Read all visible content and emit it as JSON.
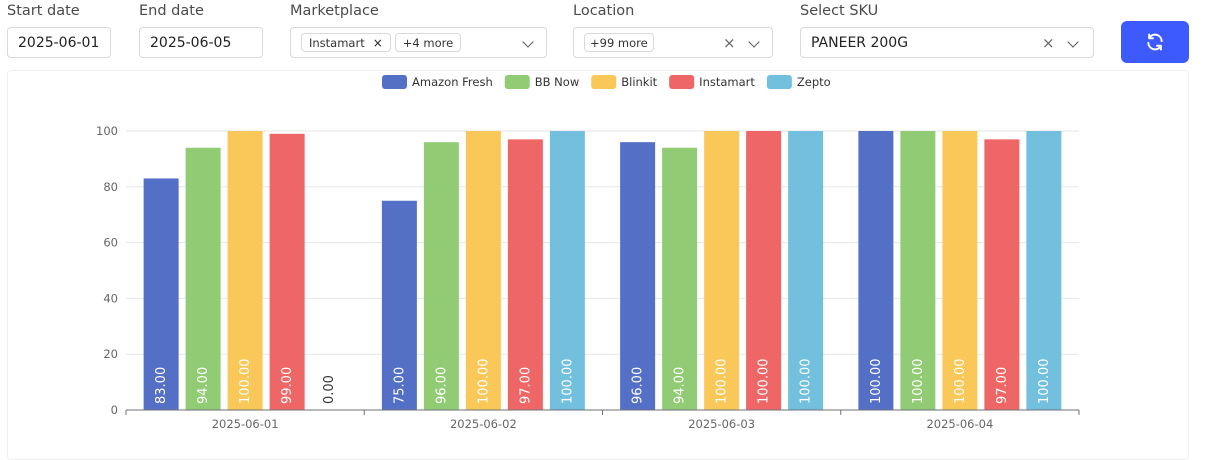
{
  "filters": {
    "start_date": {
      "label": "Start date",
      "value": "2025-06-01"
    },
    "end_date": {
      "label": "End date",
      "value": "2025-06-05"
    },
    "marketplace": {
      "label": "Marketplace",
      "tag": "Instamart",
      "tag_remove": "×",
      "more": "+4 more"
    },
    "location": {
      "label": "Location",
      "more": "+99 more",
      "clear": "×"
    },
    "sku": {
      "label": "Select SKU",
      "value": "PANEER 200G",
      "clear": "×"
    },
    "refresh_icon": "refresh-icon",
    "accent_color": "#3d5afe"
  },
  "chart_data": {
    "type": "bar",
    "categories": [
      "2025-06-01",
      "2025-06-02",
      "2025-06-03",
      "2025-06-04"
    ],
    "series": [
      {
        "name": "Amazon Fresh",
        "color": "#5470c6",
        "values": [
          83,
          75,
          96,
          100
        ],
        "labels": [
          "83.00",
          "75.00",
          "96.00",
          "100.00"
        ]
      },
      {
        "name": "BB Now",
        "color": "#91cc75",
        "values": [
          94,
          96,
          94,
          100
        ],
        "labels": [
          "94.00",
          "96.00",
          "94.00",
          "100.00"
        ]
      },
      {
        "name": "Blinkit",
        "color": "#fac858",
        "values": [
          100,
          100,
          100,
          100
        ],
        "labels": [
          "100.00",
          "100.00",
          "100.00",
          "100.00"
        ]
      },
      {
        "name": "Instamart",
        "color": "#ee6666",
        "values": [
          99,
          97,
          100,
          97
        ],
        "labels": [
          "99.00",
          "97.00",
          "100.00",
          "97.00"
        ]
      },
      {
        "name": "Zepto",
        "color": "#73c0de",
        "values": [
          0,
          100,
          100,
          100
        ],
        "labels": [
          "0.00",
          "100.00",
          "100.00",
          "100.00"
        ]
      }
    ],
    "ylim": [
      0,
      100
    ],
    "yticks": [
      "0",
      "20",
      "40",
      "60",
      "80",
      "100"
    ],
    "legend_position": "top-center",
    "grid": true
  }
}
